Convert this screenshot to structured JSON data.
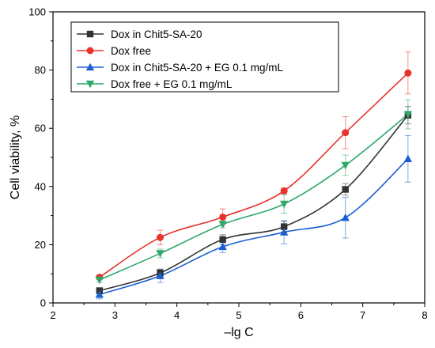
{
  "chart_data": {
    "type": "line",
    "xlabel": "–lg C",
    "ylabel": "Cell viability, %",
    "xlim": [
      2,
      8
    ],
    "ylim": [
      0,
      100
    ],
    "xticks": [
      2,
      3,
      4,
      5,
      6,
      7,
      8
    ],
    "yticks": [
      0,
      20,
      40,
      60,
      80,
      100
    ],
    "grid": false,
    "legend_position": "top-left",
    "x": [
      2.75,
      3.73,
      4.74,
      5.73,
      6.72,
      7.73
    ],
    "series": [
      {
        "name": "Dox in Chit5-SA-20",
        "color": "#333333",
        "marker": "square",
        "values": [
          4.2,
          10.3,
          21.8,
          26.2,
          39.0,
          64.5
        ],
        "errors": [
          1.0,
          1.3,
          1.6,
          1.8,
          2.0,
          3.0
        ]
      },
      {
        "name": "Dox free",
        "color": "#e8322b",
        "marker": "circle",
        "values": [
          8.8,
          22.5,
          29.5,
          38.5,
          58.5,
          79.0
        ],
        "errors": [
          0.8,
          2.5,
          2.8,
          1.0,
          5.5,
          7.2
        ]
      },
      {
        "name": "Dox in Chit5-SA-20 + EG 0.1 mg/mL",
        "color": "#1a5fd1",
        "marker": "triangle-up",
        "values": [
          2.9,
          9.3,
          19.3,
          24.3,
          29.3,
          49.5
        ],
        "errors": [
          1.5,
          2.3,
          2.0,
          4.0,
          7.0,
          8.0
        ]
      },
      {
        "name": "Dox free + EG 0.1 mg/mL",
        "color": "#2ea86b",
        "marker": "triangle-down",
        "values": [
          7.9,
          17.0,
          27.0,
          34.0,
          47.3,
          64.8
        ],
        "errors": [
          0.8,
          1.5,
          1.2,
          3.2,
          3.5,
          5.0
        ]
      }
    ]
  }
}
